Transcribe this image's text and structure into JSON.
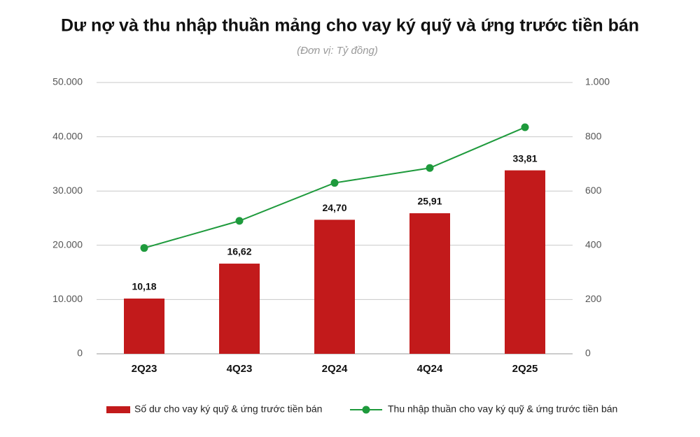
{
  "chart_data": {
    "type": "bar_line",
    "title": "Dư nợ và thu nhập thuần mảng cho vay ký quỹ và ứng trước tiền bán",
    "subtitle": "(Đơn vị: Tỷ đồng)",
    "categories": [
      "2Q23",
      "4Q23",
      "2Q24",
      "4Q24",
      "2Q25"
    ],
    "series": [
      {
        "name": "Số dư cho vay ký quỹ & ứng trước tiền bán",
        "type": "bar",
        "color": "#c21a1b",
        "values": [
          10180,
          16620,
          24700,
          25910,
          33810
        ],
        "value_labels": [
          "10,18",
          "16,62",
          "24,70",
          "25,91",
          "33,81"
        ]
      },
      {
        "name": "Thu nhập thuần cho vay ký quỹ & ứng trước tiền bán",
        "type": "line",
        "color": "#1e9a3c",
        "axis": "y2",
        "values": [
          390,
          490,
          630,
          685,
          835
        ]
      }
    ],
    "ylim": [
      0,
      50000
    ],
    "yticks": [
      0,
      {
        "value": 10000,
        "label": "10.000"
      },
      {
        "value": 20000,
        "label": "20.000"
      },
      {
        "value": 30000,
        "label": "30.000"
      },
      {
        "value": 40000,
        "label": "40.000"
      },
      {
        "value": 50000,
        "label": "50.000"
      }
    ],
    "y2lim": [
      0,
      1000
    ],
    "y2ticks": [
      0,
      200,
      400,
      600,
      800,
      {
        "value": 1000,
        "label": "1.000"
      }
    ],
    "grid": true,
    "legend": "bottom"
  }
}
